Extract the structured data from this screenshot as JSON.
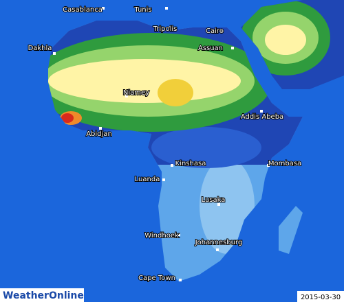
{
  "map": {
    "logo": "WeatherOnline",
    "date": "2015-03-30",
    "cities": [
      "Casablanca",
      "Tunis",
      "Tripolis",
      "Cairo",
      "Dakhla",
      "Assuan",
      "Niamey",
      "Abidjan",
      "Addis Abeba",
      "Kinshasa",
      "Mombasa",
      "Luanda",
      "Lusaka",
      "Windhoek",
      "Johannesburg",
      "Cape Town"
    ]
  }
}
